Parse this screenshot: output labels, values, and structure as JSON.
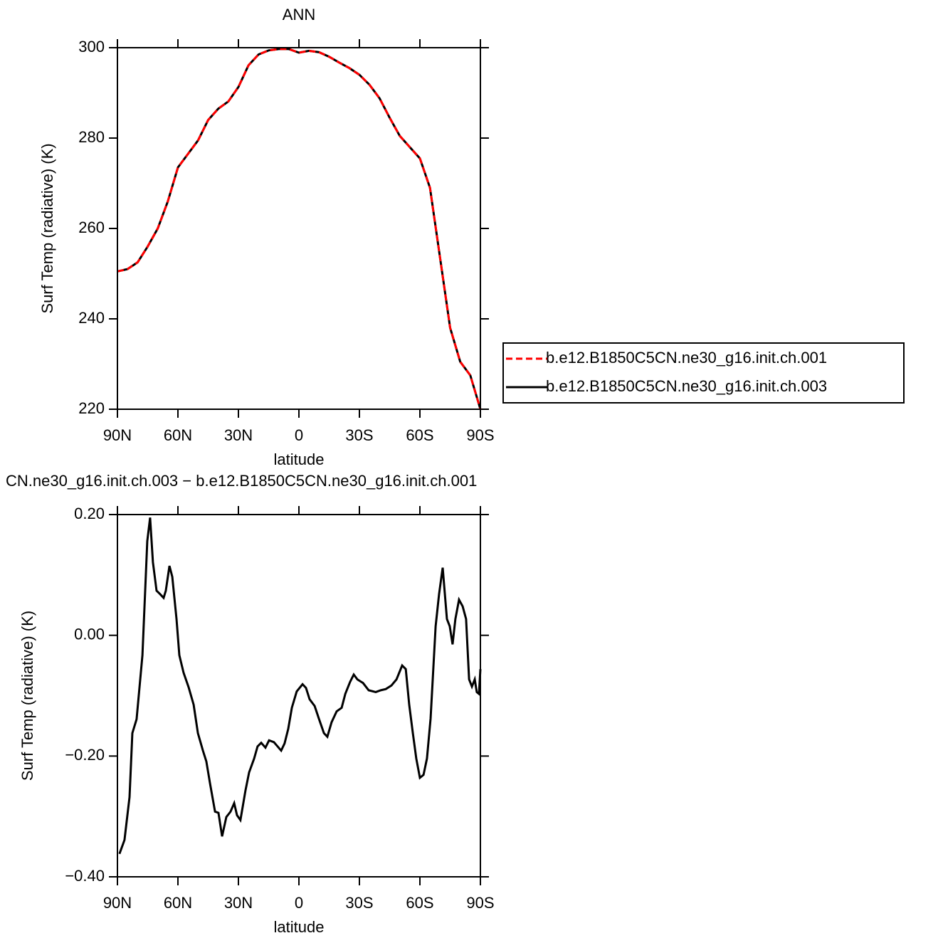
{
  "chart_data": [
    {
      "type": "line",
      "title": "ANN",
      "x_label": "latitude",
      "y_label": "Surf Temp (radiative) (K)",
      "xlim": [
        90,
        -90
      ],
      "xticks": [
        {
          "value": 90,
          "label": "90N"
        },
        {
          "value": 60,
          "label": "60N"
        },
        {
          "value": 30,
          "label": "30N"
        },
        0,
        {
          "value": -30,
          "label": "30S"
        },
        {
          "value": -60,
          "label": "60S"
        },
        {
          "value": -90,
          "label": "90S"
        }
      ],
      "ylim": [
        220,
        300
      ],
      "yticks": [
        220,
        240,
        260,
        280,
        300
      ],
      "legend": "right",
      "x": [
        90,
        85,
        80,
        75,
        70,
        65,
        60,
        55,
        50,
        45,
        40,
        35,
        30,
        25,
        20,
        15,
        10,
        5,
        0,
        -5,
        -10,
        -15,
        -20,
        -25,
        -30,
        -35,
        -40,
        -45,
        -50,
        -55,
        -60,
        -65,
        -70,
        -75,
        -80,
        -85,
        -90
      ],
      "series": [
        {
          "name": "b.e12.B1850C5CN.ne30_g16.init.ch.001",
          "color": "#ff0000",
          "dashed": true,
          "values": [
            250.5,
            251,
            252.5,
            256,
            260,
            266,
            273.5,
            276.5,
            279.5,
            284,
            286.5,
            288.1,
            291.3,
            296.1,
            298.5,
            299.4,
            299.7,
            299.7,
            298.9,
            299.3,
            299,
            298,
            296.7,
            295.5,
            294,
            291.8,
            288.8,
            284.5,
            280.5,
            278,
            275.5,
            269,
            253.5,
            238,
            230.5,
            227.5,
            220
          ]
        },
        {
          "name": "b.e12.B1850C5CN.ne30_g16.init.ch.003",
          "color": "#000000",
          "dashed": false,
          "values": [
            250.5,
            251,
            252.5,
            256,
            260,
            266,
            273.5,
            276.5,
            279.5,
            284,
            286.5,
            288.1,
            291.3,
            296.1,
            298.5,
            299.4,
            299.7,
            299.7,
            298.9,
            299.3,
            299,
            298,
            296.7,
            295.5,
            294,
            291.8,
            288.8,
            284.5,
            280.5,
            278,
            275.5,
            269,
            253.5,
            238,
            230.5,
            227.5,
            220
          ]
        }
      ]
    },
    {
      "type": "line",
      "title": "CN.ne30_g16.init.ch.003 − b.e12.B1850C5CN.ne30_g16.init.ch.001",
      "x_label": "latitude",
      "y_label": "Surf Temp (radiative) (K)",
      "xlim": [
        90,
        -90
      ],
      "xticks": [
        {
          "value": 90,
          "label": "90N"
        },
        {
          "value": 60,
          "label": "60N"
        },
        {
          "value": 30,
          "label": "30N"
        },
        0,
        {
          "value": -30,
          "label": "30S"
        },
        {
          "value": -60,
          "label": "60S"
        },
        {
          "value": -90,
          "label": "90S"
        }
      ],
      "ylim": [
        -0.4,
        0.2
      ],
      "yticks": [
        {
          "value": -0.4,
          "label": "−0.40"
        },
        {
          "value": -0.2,
          "label": "−0.20"
        },
        {
          "value": 0,
          "label": "0.00"
        },
        {
          "value": 0.2,
          "label": "0.20"
        }
      ],
      "x": [
        89,
        86.5,
        84,
        82.6,
        80.5,
        77.6,
        75.2,
        73.8,
        72.4,
        70.6,
        68.8,
        67.1,
        66,
        64.2,
        62.8,
        60.7,
        59.3,
        57.2,
        54.7,
        52.2,
        50.1,
        47.6,
        45.9,
        44.1,
        41.6,
        39.9,
        38.1,
        36,
        33.9,
        32.1,
        30.7,
        29,
        26.5,
        24.7,
        22.2,
        20.5,
        18.7,
        16.6,
        14.8,
        12.4,
        8.8,
        7.1,
        5.3,
        3.5,
        1.1,
        -1.8,
        -3.5,
        -5.3,
        -7.8,
        -9.9,
        -12.4,
        -14.1,
        -16.2,
        -18.7,
        -21.2,
        -23,
        -25.4,
        -27.2,
        -29,
        -31.8,
        -34.6,
        -38.1,
        -40.6,
        -43.1,
        -45.9,
        -48.4,
        -51.2,
        -53,
        -54.7,
        -56.5,
        -58.2,
        -60,
        -61.8,
        -63.5,
        -65.3,
        -67.8,
        -69.5,
        -71.3,
        -73.4,
        -74.8,
        -76.2,
        -77.6,
        -79.4,
        -81.2,
        -82.9,
        -84.4,
        -85.8,
        -87.2,
        -88.2,
        -89.3,
        -90
      ],
      "series": [
        {
          "color": "#000000",
          "dashed": false,
          "values": [
            -0.362,
            -0.339,
            -0.268,
            -0.162,
            -0.139,
            -0.033,
            0.156,
            0.195,
            0.121,
            0.074,
            0.068,
            0.062,
            0.074,
            0.115,
            0.097,
            0.027,
            -0.033,
            -0.062,
            -0.086,
            -0.115,
            -0.162,
            -0.191,
            -0.209,
            -0.245,
            -0.292,
            -0.294,
            -0.333,
            -0.301,
            -0.292,
            -0.278,
            -0.298,
            -0.306,
            -0.257,
            -0.227,
            -0.204,
            -0.184,
            -0.178,
            -0.186,
            -0.174,
            -0.177,
            -0.191,
            -0.179,
            -0.155,
            -0.12,
            -0.093,
            -0.081,
            -0.087,
            -0.106,
            -0.117,
            -0.138,
            -0.162,
            -0.168,
            -0.144,
            -0.126,
            -0.12,
            -0.097,
            -0.077,
            -0.065,
            -0.073,
            -0.079,
            -0.091,
            -0.094,
            -0.091,
            -0.089,
            -0.083,
            -0.073,
            -0.05,
            -0.056,
            -0.115,
            -0.162,
            -0.204,
            -0.236,
            -0.231,
            -0.204,
            -0.138,
            0.015,
            0.068,
            0.112,
            0.027,
            0.015,
            -0.015,
            0.027,
            0.059,
            0.048,
            0.027,
            -0.073,
            -0.085,
            -0.073,
            -0.094,
            -0.097,
            -0.056
          ]
        }
      ]
    }
  ]
}
